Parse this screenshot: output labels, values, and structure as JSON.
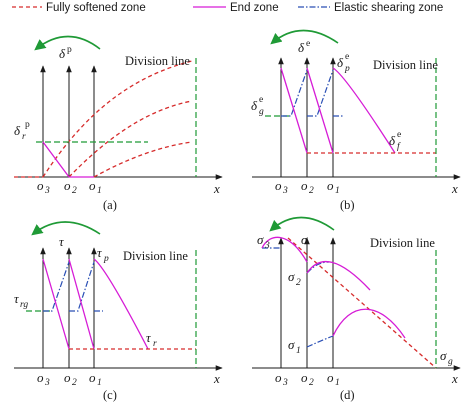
{
  "legend": {
    "fully_softened": "Fully softened zone",
    "end_zone": "End zone",
    "elastic_shearing": "Elastic shearing zone"
  },
  "colors": {
    "fully_softened": "#d62c2c",
    "end_zone": "#d61cd6",
    "elastic_shearing": "#2a4fb5",
    "division_line": "#1f9a36",
    "rotation_arrow": "#1f9a36"
  },
  "common": {
    "division_line": "Division line",
    "x_axis": "x",
    "o1": "o",
    "o1_sub": "1",
    "o2": "o",
    "o2_sub": "2",
    "o3": "o",
    "o3_sub": "3"
  },
  "panels": {
    "a": {
      "caption": "(a)",
      "y_symbol": "δ",
      "y_sup": "p",
      "level_symbol": "δ",
      "level_sub": "r",
      "level_sup": "p"
    },
    "b": {
      "caption": "(b)",
      "y_symbol": "δ",
      "y_sup": "e",
      "peak_symbol": "δ",
      "peak_sub": "p",
      "peak_sup": "e",
      "g_symbol": "δ",
      "g_sub": "g",
      "g_sup": "e",
      "r_symbol": "δ",
      "r_sub": "f",
      "r_sup": "e"
    },
    "c": {
      "caption": "(c)",
      "y_symbol": "τ",
      "peak_symbol": "τ",
      "peak_sub": "p",
      "g_symbol": "τ",
      "g_sub": "rg",
      "r_symbol": "τ",
      "r_sub": "r"
    },
    "d": {
      "caption": "(d)",
      "y_symbol": "σ",
      "s1": "σ",
      "s1_sub": "1",
      "s2": "σ",
      "s2_sub": "2",
      "s3": "σ",
      "s3_sub": "3",
      "sg": "σ",
      "sg_sub": "g"
    }
  }
}
